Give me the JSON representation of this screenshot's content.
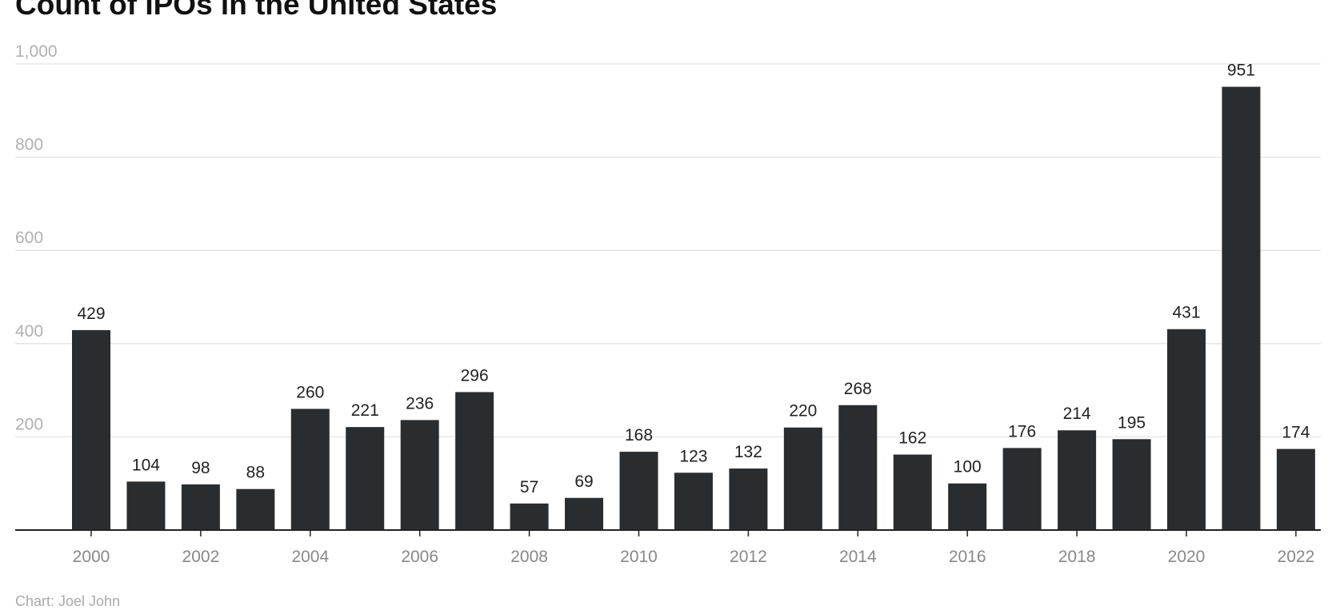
{
  "chart_data": {
    "type": "bar",
    "title": "Count of IPOs in the United States",
    "credit": "Chart: Joel John",
    "xlabel": "",
    "ylabel": "",
    "ylim": [
      0,
      1000
    ],
    "yticks": [
      200,
      400,
      600,
      800,
      1000
    ],
    "ytick_labels": [
      "200",
      "400",
      "600",
      "800",
      "1,000"
    ],
    "xtick_labels": [
      "2000",
      "2002",
      "2004",
      "2006",
      "2008",
      "2010",
      "2012",
      "2014",
      "2016",
      "2018",
      "2020",
      "2022"
    ],
    "grid": true,
    "data_labels": true,
    "bar_color": "#2a2d30",
    "categories": [
      "2000",
      "2001",
      "2002",
      "2003",
      "2004",
      "2005",
      "2006",
      "2007",
      "2008",
      "2009",
      "2010",
      "2011",
      "2012",
      "2013",
      "2014",
      "2015",
      "2016",
      "2017",
      "2018",
      "2019",
      "2020",
      "2021",
      "2022"
    ],
    "values": [
      429,
      104,
      98,
      88,
      260,
      221,
      236,
      296,
      57,
      69,
      168,
      123,
      132,
      220,
      268,
      162,
      100,
      176,
      214,
      195,
      431,
      951,
      174
    ]
  }
}
